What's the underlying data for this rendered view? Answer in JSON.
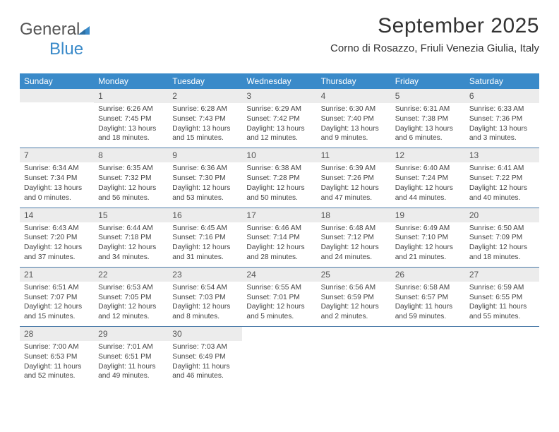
{
  "brand": {
    "name_part1": "General",
    "name_part2": "Blue",
    "text_color": "#555555",
    "accent_color": "#3a8ac9"
  },
  "header": {
    "title": "September 2025",
    "location": "Corno di Rosazzo, Friuli Venezia Giulia, Italy",
    "title_fontsize": 30,
    "subtitle_fontsize": 15
  },
  "styling": {
    "header_row_bg": "#3a8ac9",
    "header_row_text": "#ffffff",
    "daynum_bg": "#ececec",
    "daynum_text": "#555555",
    "row_border_color": "#4a7aa8",
    "body_text_color": "#444444",
    "cell_fontsize": 10.2,
    "weekday_fontsize": 12,
    "page_bg": "#ffffff"
  },
  "weekdays": [
    "Sunday",
    "Monday",
    "Tuesday",
    "Wednesday",
    "Thursday",
    "Friday",
    "Saturday"
  ],
  "labels": {
    "sunrise": "Sunrise:",
    "sunset": "Sunset:",
    "daylight": "Daylight:"
  },
  "weeks": [
    [
      {
        "empty": true
      },
      {
        "day": "1",
        "sunrise": "6:26 AM",
        "sunset": "7:45 PM",
        "daylight": "13 hours and 18 minutes."
      },
      {
        "day": "2",
        "sunrise": "6:28 AM",
        "sunset": "7:43 PM",
        "daylight": "13 hours and 15 minutes."
      },
      {
        "day": "3",
        "sunrise": "6:29 AM",
        "sunset": "7:42 PM",
        "daylight": "13 hours and 12 minutes."
      },
      {
        "day": "4",
        "sunrise": "6:30 AM",
        "sunset": "7:40 PM",
        "daylight": "13 hours and 9 minutes."
      },
      {
        "day": "5",
        "sunrise": "6:31 AM",
        "sunset": "7:38 PM",
        "daylight": "13 hours and 6 minutes."
      },
      {
        "day": "6",
        "sunrise": "6:33 AM",
        "sunset": "7:36 PM",
        "daylight": "13 hours and 3 minutes."
      }
    ],
    [
      {
        "day": "7",
        "sunrise": "6:34 AM",
        "sunset": "7:34 PM",
        "daylight": "13 hours and 0 minutes."
      },
      {
        "day": "8",
        "sunrise": "6:35 AM",
        "sunset": "7:32 PM",
        "daylight": "12 hours and 56 minutes."
      },
      {
        "day": "9",
        "sunrise": "6:36 AM",
        "sunset": "7:30 PM",
        "daylight": "12 hours and 53 minutes."
      },
      {
        "day": "10",
        "sunrise": "6:38 AM",
        "sunset": "7:28 PM",
        "daylight": "12 hours and 50 minutes."
      },
      {
        "day": "11",
        "sunrise": "6:39 AM",
        "sunset": "7:26 PM",
        "daylight": "12 hours and 47 minutes."
      },
      {
        "day": "12",
        "sunrise": "6:40 AM",
        "sunset": "7:24 PM",
        "daylight": "12 hours and 44 minutes."
      },
      {
        "day": "13",
        "sunrise": "6:41 AM",
        "sunset": "7:22 PM",
        "daylight": "12 hours and 40 minutes."
      }
    ],
    [
      {
        "day": "14",
        "sunrise": "6:43 AM",
        "sunset": "7:20 PM",
        "daylight": "12 hours and 37 minutes."
      },
      {
        "day": "15",
        "sunrise": "6:44 AM",
        "sunset": "7:18 PM",
        "daylight": "12 hours and 34 minutes."
      },
      {
        "day": "16",
        "sunrise": "6:45 AM",
        "sunset": "7:16 PM",
        "daylight": "12 hours and 31 minutes."
      },
      {
        "day": "17",
        "sunrise": "6:46 AM",
        "sunset": "7:14 PM",
        "daylight": "12 hours and 28 minutes."
      },
      {
        "day": "18",
        "sunrise": "6:48 AM",
        "sunset": "7:12 PM",
        "daylight": "12 hours and 24 minutes."
      },
      {
        "day": "19",
        "sunrise": "6:49 AM",
        "sunset": "7:10 PM",
        "daylight": "12 hours and 21 minutes."
      },
      {
        "day": "20",
        "sunrise": "6:50 AM",
        "sunset": "7:09 PM",
        "daylight": "12 hours and 18 minutes."
      }
    ],
    [
      {
        "day": "21",
        "sunrise": "6:51 AM",
        "sunset": "7:07 PM",
        "daylight": "12 hours and 15 minutes."
      },
      {
        "day": "22",
        "sunrise": "6:53 AM",
        "sunset": "7:05 PM",
        "daylight": "12 hours and 12 minutes."
      },
      {
        "day": "23",
        "sunrise": "6:54 AM",
        "sunset": "7:03 PM",
        "daylight": "12 hours and 8 minutes."
      },
      {
        "day": "24",
        "sunrise": "6:55 AM",
        "sunset": "7:01 PM",
        "daylight": "12 hours and 5 minutes."
      },
      {
        "day": "25",
        "sunrise": "6:56 AM",
        "sunset": "6:59 PM",
        "daylight": "12 hours and 2 minutes."
      },
      {
        "day": "26",
        "sunrise": "6:58 AM",
        "sunset": "6:57 PM",
        "daylight": "11 hours and 59 minutes."
      },
      {
        "day": "27",
        "sunrise": "6:59 AM",
        "sunset": "6:55 PM",
        "daylight": "11 hours and 55 minutes."
      }
    ],
    [
      {
        "day": "28",
        "sunrise": "7:00 AM",
        "sunset": "6:53 PM",
        "daylight": "11 hours and 52 minutes."
      },
      {
        "day": "29",
        "sunrise": "7:01 AM",
        "sunset": "6:51 PM",
        "daylight": "11 hours and 49 minutes."
      },
      {
        "day": "30",
        "sunrise": "7:03 AM",
        "sunset": "6:49 PM",
        "daylight": "11 hours and 46 minutes."
      },
      {
        "empty": true,
        "blank": true
      },
      {
        "empty": true,
        "blank": true
      },
      {
        "empty": true,
        "blank": true
      },
      {
        "empty": true,
        "blank": true
      }
    ]
  ]
}
